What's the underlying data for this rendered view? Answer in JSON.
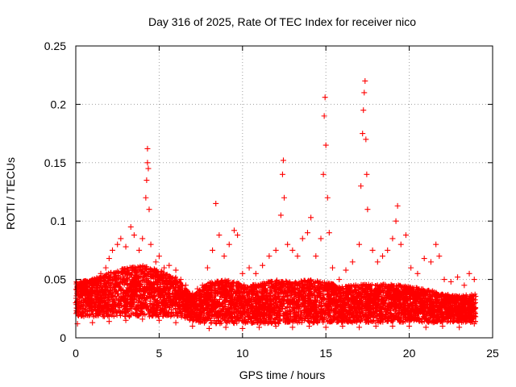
{
  "chart_data": {
    "type": "scatter",
    "title": "Day 316 of 2025, Rate Of TEC Index for receiver nico",
    "xlabel": "GPS time / hours",
    "ylabel": "ROTI / TECUs",
    "xlim": [
      0,
      25
    ],
    "ylim": [
      0,
      0.25
    ],
    "xticks": [
      0,
      5,
      10,
      15,
      20,
      25
    ],
    "xtick_labels": [
      "0",
      "5",
      "10",
      "15",
      "20",
      "25"
    ],
    "yticks": [
      0,
      0.05,
      0.1,
      0.15,
      0.2,
      0.25
    ],
    "ytick_labels": [
      "0",
      "0.05",
      "0.1",
      "0.15",
      "0.2",
      "0.25"
    ],
    "grid": true,
    "marker": "+",
    "color": "#ff0000",
    "series": [
      {
        "name": "ROTI",
        "points": [
          [
            0.0,
            0.03
          ],
          [
            0.2,
            0.045
          ],
          [
            0.4,
            0.025
          ],
          [
            0.6,
            0.048
          ],
          [
            0.8,
            0.035
          ],
          [
            1.0,
            0.05
          ],
          [
            1.2,
            0.03
          ],
          [
            1.5,
            0.055
          ],
          [
            1.8,
            0.06
          ],
          [
            2.0,
            0.068
          ],
          [
            2.2,
            0.075
          ],
          [
            2.5,
            0.08
          ],
          [
            2.7,
            0.085
          ],
          [
            3.0,
            0.078
          ],
          [
            3.3,
            0.095
          ],
          [
            3.5,
            0.088
          ],
          [
            3.8,
            0.075
          ],
          [
            4.0,
            0.085
          ],
          [
            4.2,
            0.12
          ],
          [
            4.25,
            0.135
          ],
          [
            4.3,
            0.15
          ],
          [
            4.3,
            0.162
          ],
          [
            4.35,
            0.145
          ],
          [
            4.4,
            0.11
          ],
          [
            4.5,
            0.08
          ],
          [
            4.8,
            0.065
          ],
          [
            5.0,
            0.07
          ],
          [
            5.3,
            0.06
          ],
          [
            5.6,
            0.062
          ],
          [
            6.0,
            0.058
          ],
          [
            6.3,
            0.05
          ],
          [
            6.6,
            0.045
          ],
          [
            7.0,
            0.038
          ],
          [
            7.3,
            0.042
          ],
          [
            7.6,
            0.045
          ],
          [
            7.9,
            0.06
          ],
          [
            8.2,
            0.075
          ],
          [
            8.4,
            0.115
          ],
          [
            8.6,
            0.088
          ],
          [
            8.9,
            0.07
          ],
          [
            9.2,
            0.08
          ],
          [
            9.5,
            0.092
          ],
          [
            9.7,
            0.088
          ],
          [
            10.0,
            0.055
          ],
          [
            10.4,
            0.06
          ],
          [
            10.8,
            0.055
          ],
          [
            11.2,
            0.062
          ],
          [
            11.6,
            0.07
          ],
          [
            12.0,
            0.075
          ],
          [
            12.3,
            0.105
          ],
          [
            12.4,
            0.14
          ],
          [
            12.45,
            0.152
          ],
          [
            12.5,
            0.12
          ],
          [
            12.7,
            0.08
          ],
          [
            13.0,
            0.075
          ],
          [
            13.3,
            0.07
          ],
          [
            13.6,
            0.085
          ],
          [
            13.9,
            0.09
          ],
          [
            14.1,
            0.103
          ],
          [
            14.4,
            0.07
          ],
          [
            14.7,
            0.085
          ],
          [
            14.85,
            0.14
          ],
          [
            14.9,
            0.19
          ],
          [
            14.95,
            0.206
          ],
          [
            15.0,
            0.165
          ],
          [
            15.1,
            0.12
          ],
          [
            15.2,
            0.09
          ],
          [
            15.4,
            0.06
          ],
          [
            15.8,
            0.05
          ],
          [
            16.2,
            0.058
          ],
          [
            16.6,
            0.065
          ],
          [
            17.0,
            0.08
          ],
          [
            17.1,
            0.13
          ],
          [
            17.2,
            0.175
          ],
          [
            17.25,
            0.195
          ],
          [
            17.3,
            0.21
          ],
          [
            17.35,
            0.22
          ],
          [
            17.4,
            0.17
          ],
          [
            17.45,
            0.14
          ],
          [
            17.5,
            0.11
          ],
          [
            17.8,
            0.075
          ],
          [
            18.1,
            0.065
          ],
          [
            18.4,
            0.07
          ],
          [
            18.7,
            0.075
          ],
          [
            19.0,
            0.085
          ],
          [
            19.2,
            0.1
          ],
          [
            19.3,
            0.113
          ],
          [
            19.5,
            0.08
          ],
          [
            19.8,
            0.088
          ],
          [
            20.1,
            0.06
          ],
          [
            20.5,
            0.055
          ],
          [
            20.9,
            0.068
          ],
          [
            21.3,
            0.065
          ],
          [
            21.6,
            0.08
          ],
          [
            21.8,
            0.07
          ],
          [
            22.1,
            0.05
          ],
          [
            22.5,
            0.048
          ],
          [
            22.9,
            0.052
          ],
          [
            23.3,
            0.045
          ],
          [
            23.6,
            0.055
          ],
          [
            23.9,
            0.05
          ],
          [
            0.1,
            0.012
          ],
          [
            1.0,
            0.013
          ],
          [
            2.0,
            0.014
          ],
          [
            3.0,
            0.015
          ],
          [
            4.0,
            0.016
          ],
          [
            5.0,
            0.015
          ],
          [
            6.0,
            0.013
          ],
          [
            7.0,
            0.01
          ],
          [
            8.0,
            0.008
          ],
          [
            9.0,
            0.009
          ],
          [
            10.0,
            0.008
          ],
          [
            11.0,
            0.009
          ],
          [
            12.0,
            0.01
          ],
          [
            13.0,
            0.009
          ],
          [
            14.0,
            0.01
          ],
          [
            15.0,
            0.009
          ],
          [
            16.0,
            0.01
          ],
          [
            17.0,
            0.009
          ],
          [
            18.0,
            0.01
          ],
          [
            19.0,
            0.01
          ],
          [
            20.0,
            0.01
          ],
          [
            21.0,
            0.009
          ],
          [
            22.0,
            0.01
          ],
          [
            23.0,
            0.009
          ],
          [
            23.9,
            0.012
          ]
        ],
        "envelope_lower": [
          [
            0,
            0.018
          ],
          [
            2,
            0.018
          ],
          [
            4,
            0.018
          ],
          [
            6,
            0.018
          ],
          [
            7,
            0.014
          ],
          [
            8,
            0.012
          ],
          [
            12,
            0.012
          ],
          [
            16,
            0.013
          ],
          [
            20,
            0.013
          ],
          [
            24,
            0.013
          ]
        ],
        "envelope_upper": [
          [
            0,
            0.048
          ],
          [
            1,
            0.05
          ],
          [
            2,
            0.056
          ],
          [
            3,
            0.06
          ],
          [
            4,
            0.062
          ],
          [
            5,
            0.058
          ],
          [
            6,
            0.052
          ],
          [
            7,
            0.036
          ],
          [
            8,
            0.048
          ],
          [
            9,
            0.05
          ],
          [
            10,
            0.046
          ],
          [
            11,
            0.046
          ],
          [
            12,
            0.05
          ],
          [
            13,
            0.048
          ],
          [
            14,
            0.05
          ],
          [
            15,
            0.048
          ],
          [
            16,
            0.044
          ],
          [
            17,
            0.046
          ],
          [
            18,
            0.046
          ],
          [
            19,
            0.046
          ],
          [
            20,
            0.044
          ],
          [
            21,
            0.042
          ],
          [
            22,
            0.038
          ],
          [
            23,
            0.036
          ],
          [
            24,
            0.038
          ]
        ],
        "x_range": [
          0,
          24
        ]
      }
    ]
  }
}
